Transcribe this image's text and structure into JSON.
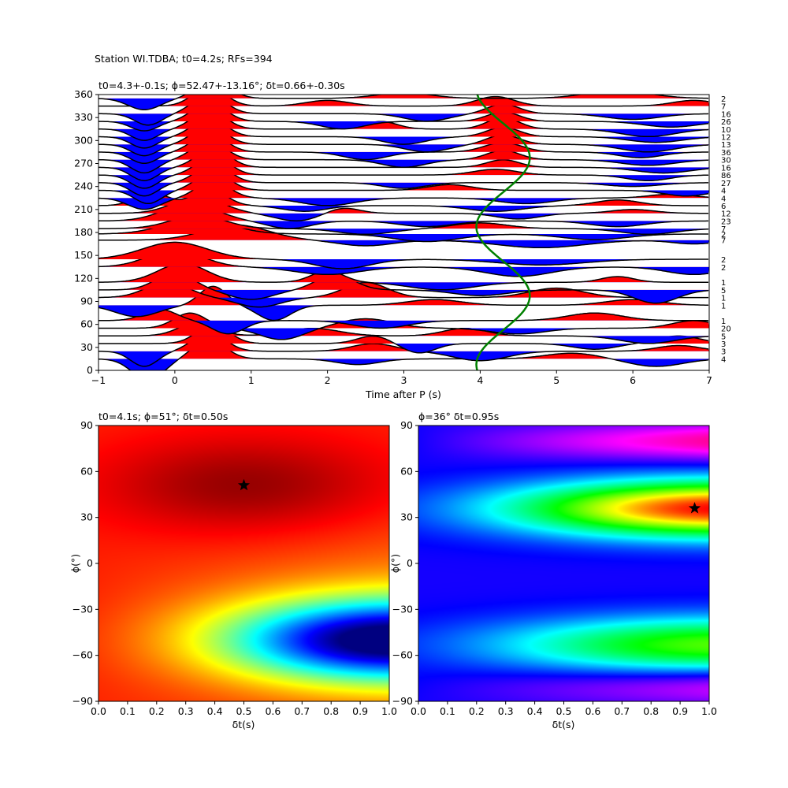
{
  "suptitle": "Station WI.TDBA; t0=4.2s; RFs=394",
  "colors": {
    "positive_fill": "#ff0000",
    "negative_fill": "#0000ff",
    "trace_line": "#000000",
    "model_curve": "#008000",
    "star": "#000000"
  },
  "chart_data": [
    {
      "type": "line",
      "panel": "traces",
      "title": "t0=4.3+-0.1s; ϕ=52.47+-13.16°; δt=0.66+-0.30s",
      "xlabel": "Time after P (s)",
      "ylabel": "",
      "xlim": [
        -1,
        7
      ],
      "ylim": [
        0,
        360
      ],
      "xticks": [
        -1,
        0,
        1,
        2,
        3,
        4,
        5,
        6,
        7
      ],
      "yticks": [
        0,
        30,
        60,
        90,
        120,
        150,
        180,
        210,
        240,
        270,
        300,
        330,
        360
      ],
      "grid": false,
      "traces": [
        {
          "baz": 15,
          "count": 4,
          "pulses": [
            [
              -0.35,
              0.3,
              -1.1
            ],
            [
              0.45,
              0.3,
              1.0
            ],
            [
              2.4,
              0.4,
              -0.3
            ],
            [
              5.2,
              0.5,
              0.3
            ],
            [
              6.3,
              0.5,
              -0.4
            ]
          ]
        },
        {
          "baz": 25,
          "count": 3,
          "pulses": [
            [
              -0.4,
              0.25,
              -0.8
            ],
            [
              0.45,
              0.3,
              1.0
            ],
            [
              2.6,
              0.4,
              0.4
            ],
            [
              4.0,
              0.5,
              -0.5
            ],
            [
              6.6,
              0.4,
              0.3
            ]
          ]
        },
        {
          "baz": 35,
          "count": 3,
          "pulses": [
            [
              0.5,
              0.3,
              1.0
            ],
            [
              2.6,
              0.3,
              0.4
            ],
            [
              3.2,
              0.3,
              -0.5
            ],
            [
              5.5,
              0.4,
              -0.3
            ],
            [
              6.6,
              0.4,
              0.4
            ]
          ]
        },
        {
          "baz": 45,
          "count": 5,
          "pulses": [
            [
              0.3,
              0.35,
              0.7
            ],
            [
              1.8,
              0.5,
              0.4
            ],
            [
              3.8,
              0.4,
              0.4
            ],
            [
              6.2,
              0.5,
              -0.4
            ]
          ]
        },
        {
          "baz": 55,
          "count": 20,
          "pulses": [
            [
              0.2,
              0.3,
              0.8
            ],
            [
              1.4,
              0.4,
              -0.6
            ],
            [
              2.5,
              0.5,
              0.5
            ],
            [
              4.5,
              0.5,
              -0.3
            ],
            [
              6.8,
              0.4,
              0.4
            ]
          ]
        },
        {
          "baz": 65,
          "count": 1,
          "pulses": [
            [
              -0.2,
              0.3,
              0.6
            ],
            [
              0.7,
              0.3,
              -0.7
            ],
            [
              2.7,
              0.5,
              -0.4
            ],
            [
              5.5,
              0.5,
              0.4
            ]
          ]
        },
        {
          "baz": 85,
          "count": 1,
          "pulses": [
            [
              -0.5,
              0.4,
              -0.6
            ],
            [
              0.5,
              0.25,
              1.0
            ],
            [
              1.3,
              0.3,
              -0.8
            ],
            [
              3.4,
              0.5,
              0.3
            ],
            [
              6.0,
              0.5,
              0.3
            ]
          ]
        },
        {
          "baz": 95,
          "count": 1,
          "pulses": [
            [
              -0.1,
              0.4,
              0.8
            ],
            [
              1.1,
              0.4,
              -0.5
            ],
            [
              2.5,
              0.4,
              0.8
            ],
            [
              5.0,
              0.5,
              0.5
            ]
          ]
        },
        {
          "baz": 105,
          "count": 5,
          "pulses": [
            [
              0.0,
              0.35,
              0.9
            ],
            [
              1.0,
              0.4,
              -0.5
            ],
            [
              2.1,
              0.35,
              0.8
            ],
            [
              4.0,
              0.5,
              -0.3
            ],
            [
              6.3,
              0.4,
              -0.7
            ]
          ]
        },
        {
          "baz": 115,
          "count": 1,
          "pulses": [
            [
              0.1,
              0.45,
              1.0
            ],
            [
              2.0,
              0.3,
              0.6
            ],
            [
              3.5,
              0.6,
              -0.4
            ],
            [
              5.8,
              0.3,
              0.3
            ]
          ]
        },
        {
          "baz": 135,
          "count": 2,
          "pulses": [
            [
              0.0,
              0.5,
              0.9
            ],
            [
              2.0,
              0.6,
              -0.4
            ],
            [
              4.5,
              0.6,
              -0.5
            ],
            [
              6.8,
              0.5,
              -0.4
            ]
          ]
        },
        {
          "baz": 145,
          "count": 2,
          "pulses": [
            [
              0.0,
              0.6,
              0.9
            ],
            [
              2.2,
              0.5,
              -0.5
            ],
            [
              4.8,
              0.8,
              -0.3
            ]
          ]
        },
        {
          "baz": 170,
          "count": 7,
          "pulses": [
            [
              0.8,
              0.6,
              0.8
            ],
            [
              2.5,
              0.5,
              -0.3
            ],
            [
              4.8,
              0.8,
              -0.4
            ],
            [
              6.8,
              0.4,
              -0.2
            ]
          ]
        },
        {
          "baz": 178,
          "count": 2,
          "pulses": [
            [
              0.3,
              0.6,
              0.8
            ],
            [
              3.3,
              0.6,
              -0.4
            ],
            [
              5.5,
              0.6,
              -0.3
            ]
          ]
        },
        {
          "baz": 185,
          "count": 7,
          "pulses": [
            [
              0.3,
              0.5,
              0.7
            ],
            [
              2.5,
              0.5,
              -0.3
            ],
            [
              4.0,
              0.5,
              0.3
            ],
            [
              6.2,
              0.5,
              -0.3
            ]
          ]
        },
        {
          "baz": 195,
          "count": 23,
          "pulses": [
            [
              0.2,
              0.5,
              0.9
            ],
            [
              1.5,
              0.4,
              -0.4
            ],
            [
              3.3,
              0.5,
              -0.3
            ],
            [
              5.8,
              0.5,
              -0.3
            ]
          ]
        },
        {
          "baz": 205,
          "count": 12,
          "pulses": [
            [
              0.3,
              0.45,
              0.9
            ],
            [
              1.6,
              0.4,
              -0.4
            ],
            [
              2.2,
              0.3,
              0.3
            ],
            [
              4.5,
              0.4,
              -0.3
            ],
            [
              6.0,
              0.4,
              0.2
            ]
          ]
        },
        {
          "baz": 215,
          "count": 6,
          "pulses": [
            [
              -0.3,
              0.3,
              0.7
            ],
            [
              0.45,
              0.3,
              0.9
            ],
            [
              1.7,
              0.4,
              -0.3
            ],
            [
              4.2,
              0.5,
              -0.3
            ],
            [
              5.8,
              0.4,
              0.3
            ]
          ]
        },
        {
          "baz": 225,
          "count": 4,
          "pulses": [
            [
              -0.4,
              0.3,
              -0.6
            ],
            [
              0.5,
              0.3,
              0.9
            ],
            [
              2.0,
              0.5,
              -0.4
            ],
            [
              4.6,
              0.5,
              -0.3
            ],
            [
              6.5,
              0.4,
              0.2
            ]
          ]
        },
        {
          "baz": 235,
          "count": 4,
          "pulses": [
            [
              -0.35,
              0.25,
              -0.7
            ],
            [
              0.5,
              0.3,
              1.0
            ],
            [
              3.6,
              0.4,
              0.3
            ],
            [
              6.7,
              0.4,
              -0.3
            ]
          ]
        },
        {
          "baz": 245,
          "count": 27,
          "pulses": [
            [
              -0.4,
              0.25,
              -0.7
            ],
            [
              0.5,
              0.3,
              1.0
            ],
            [
              3.0,
              0.4,
              -0.3
            ],
            [
              6.0,
              0.5,
              -0.2
            ]
          ]
        },
        {
          "baz": 255,
          "count": 86,
          "pulses": [
            [
              -0.4,
              0.25,
              -0.7
            ],
            [
              0.5,
              0.3,
              1.0
            ],
            [
              4.2,
              0.4,
              0.3
            ],
            [
              6.2,
              0.4,
              -0.3
            ]
          ]
        },
        {
          "baz": 265,
          "count": 16,
          "pulses": [
            [
              -0.4,
              0.25,
              -0.7
            ],
            [
              0.5,
              0.3,
              1.0
            ],
            [
              4.3,
              0.3,
              0.4
            ],
            [
              6.4,
              0.5,
              -0.3
            ]
          ]
        },
        {
          "baz": 275,
          "count": 30,
          "pulses": [
            [
              -0.4,
              0.25,
              -0.7
            ],
            [
              0.45,
              0.3,
              1.0
            ],
            [
              3.0,
              0.4,
              -0.4
            ],
            [
              4.3,
              0.3,
              0.5
            ],
            [
              6.2,
              0.5,
              -0.3
            ]
          ]
        },
        {
          "baz": 285,
          "count": 36,
          "pulses": [
            [
              -0.4,
              0.25,
              -0.6
            ],
            [
              0.45,
              0.3,
              1.0
            ],
            [
              2.5,
              0.4,
              -0.4
            ],
            [
              4.3,
              0.35,
              0.5
            ],
            [
              6.1,
              0.4,
              -0.3
            ]
          ]
        },
        {
          "baz": 295,
          "count": 13,
          "pulses": [
            [
              -0.4,
              0.25,
              -0.6
            ],
            [
              0.45,
              0.3,
              1.0
            ],
            [
              3.3,
              0.4,
              -0.4
            ],
            [
              4.3,
              0.3,
              0.5
            ],
            [
              6.2,
              0.5,
              -0.4
            ]
          ]
        },
        {
          "baz": 305,
          "count": 12,
          "pulses": [
            [
              -0.4,
              0.25,
              -0.6
            ],
            [
              0.45,
              0.3,
              1.0
            ],
            [
              3.0,
              0.4,
              -0.4
            ],
            [
              4.3,
              0.3,
              0.5
            ],
            [
              6.3,
              0.5,
              -0.3
            ]
          ]
        },
        {
          "baz": 315,
          "count": 10,
          "pulses": [
            [
              -0.4,
              0.25,
              -0.6
            ],
            [
              0.45,
              0.3,
              1.0
            ],
            [
              2.7,
              0.3,
              0.4
            ],
            [
              4.3,
              0.3,
              0.6
            ],
            [
              6.2,
              0.5,
              -0.4
            ]
          ]
        },
        {
          "baz": 325,
          "count": 26,
          "pulses": [
            [
              -0.4,
              0.25,
              -0.5
            ],
            [
              0.45,
              0.3,
              1.0
            ],
            [
              2.2,
              0.4,
              -0.4
            ],
            [
              4.3,
              0.3,
              0.5
            ],
            [
              6.5,
              0.5,
              -0.3
            ]
          ]
        },
        {
          "baz": 335,
          "count": 16,
          "pulses": [
            [
              -0.35,
              0.25,
              -0.6
            ],
            [
              0.45,
              0.3,
              1.0
            ],
            [
              3.3,
              0.4,
              -0.4
            ],
            [
              4.3,
              0.3,
              0.5
            ],
            [
              6.0,
              0.5,
              -0.3
            ]
          ]
        },
        {
          "baz": 345,
          "count": 7,
          "pulses": [
            [
              0.45,
              0.3,
              1.0
            ],
            [
              2.0,
              0.4,
              0.3
            ],
            [
              4.2,
              0.35,
              0.5
            ],
            [
              6.8,
              0.4,
              0.3
            ]
          ]
        },
        {
          "baz": 355,
          "count": 2,
          "pulses": [
            [
              -0.4,
              0.3,
              -0.6
            ],
            [
              0.5,
              0.3,
              1.0
            ],
            [
              3.0,
              0.5,
              0.3
            ],
            [
              5.8,
              0.6,
              0.4
            ]
          ]
        }
      ],
      "model_curve": {
        "name": "",
        "center": 4.3,
        "amplitude": 0.35,
        "period_deg": 180,
        "phase_deg": 52.47
      }
    },
    {
      "type": "heatmap",
      "panel": "bottom-left",
      "colormap": "jet",
      "title": "t0=4.1s; ϕ=51°; δt=0.50s",
      "xlabel": "δt(s)",
      "ylabel": "ϕ(°)",
      "xlim": [
        0.0,
        1.0
      ],
      "ylim": [
        -90,
        90
      ],
      "xticks": [
        0.0,
        0.1,
        0.2,
        0.3,
        0.4,
        0.5,
        0.6,
        0.7,
        0.8,
        0.9,
        1.0
      ],
      "yticks": [
        -90,
        -60,
        -30,
        0,
        30,
        60,
        90
      ],
      "optimum": {
        "dt": 0.5,
        "phi": 51
      }
    },
    {
      "type": "heatmap",
      "panel": "bottom-right",
      "colormap": "hsv",
      "title": "ϕ=36° δt=0.95s",
      "xlabel": "δt(s)",
      "ylabel": "ϕ(°)",
      "xlim": [
        0.0,
        1.0
      ],
      "ylim": [
        -90,
        90
      ],
      "xticks": [
        0.0,
        0.1,
        0.2,
        0.3,
        0.4,
        0.5,
        0.6,
        0.7,
        0.8,
        0.9,
        1.0
      ],
      "yticks": [
        -90,
        -60,
        -30,
        0,
        30,
        60,
        90
      ],
      "optimum": {
        "dt": 0.95,
        "phi": 36
      }
    }
  ]
}
